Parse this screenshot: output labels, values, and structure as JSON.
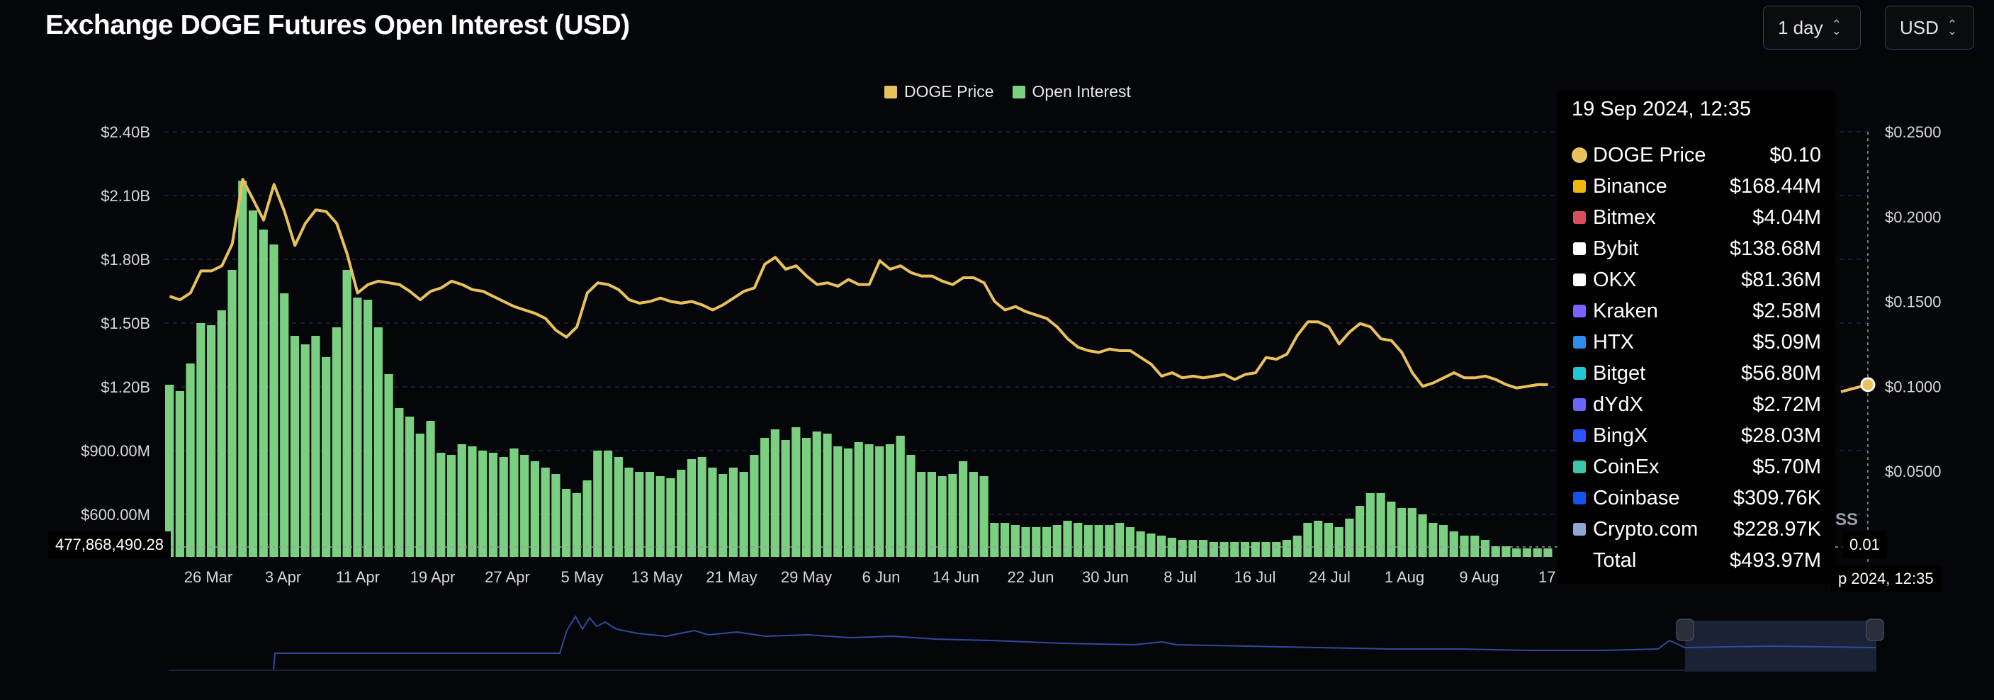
{
  "title": "Exchange DOGE Futures Open Interest (USD)",
  "controls": {
    "interval": "1 day",
    "currency": "USD"
  },
  "colors": {
    "price": "#e8c15a",
    "open_interest": "#7ad080",
    "background": "#05060a",
    "navigator_line": "#2e4a9c"
  },
  "chart_data": {
    "type": "bar",
    "legend": [
      "DOGE Price",
      "Open Interest"
    ],
    "legend_position": "top-center",
    "x_tick_labels": [
      "26 Mar",
      "3 Apr",
      "11 Apr",
      "19 Apr",
      "27 Apr",
      "5 May",
      "13 May",
      "21 May",
      "29 May",
      "6 Jun",
      "14 Jun",
      "22 Jun",
      "30 Jun",
      "8 Jul",
      "16 Jul",
      "24 Jul",
      "1 Aug",
      "9 Aug",
      "17 A"
    ],
    "y_left": {
      "ticks": [
        "$2.40B",
        "$2.10B",
        "$1.80B",
        "$1.50B",
        "$1.20B",
        "$900.00M",
        "$600.00M"
      ],
      "range": [
        400000000,
        2400000000
      ]
    },
    "y_right": {
      "ticks": [
        "$0.2500",
        "$0.2000",
        "$0.1500",
        "$0.1000",
        "$0.0500"
      ],
      "range": [
        -0.0005,
        0.25
      ]
    },
    "grid": true,
    "start_date": "2024-03-22",
    "series": [
      {
        "name": "Open Interest",
        "type": "bar",
        "axis": "left",
        "values": [
          1210,
          1180,
          1310,
          1500,
          1490,
          1560,
          1750,
          2170,
          2030,
          1940,
          1870,
          1640,
          1440,
          1400,
          1440,
          1340,
          1480,
          1750,
          1620,
          1610,
          1480,
          1260,
          1100,
          1060,
          980,
          1040,
          890,
          880,
          930,
          920,
          900,
          890,
          870,
          910,
          880,
          850,
          820,
          790,
          720,
          700,
          760,
          900,
          900,
          870,
          820,
          800,
          800,
          780,
          770,
          810,
          860,
          870,
          820,
          790,
          820,
          800,
          880,
          960,
          1000,
          950,
          1010,
          960,
          990,
          980,
          920,
          910,
          940,
          930,
          920,
          930,
          970,
          880,
          800,
          800,
          780,
          790,
          850,
          800,
          780,
          560,
          560,
          550,
          540,
          540,
          540,
          550,
          570,
          560,
          550,
          550,
          550,
          560,
          540,
          520,
          510,
          500,
          490,
          480,
          480,
          480,
          470,
          470,
          470,
          470,
          470,
          470,
          470,
          480,
          500,
          560,
          570,
          560,
          540,
          580,
          640,
          700,
          700,
          660,
          630,
          630,
          600,
          560,
          550,
          520,
          500,
          500,
          480,
          450,
          450,
          440,
          440,
          440,
          440
        ]
      },
      {
        "name": "DOGE Price",
        "type": "line",
        "axis": "right",
        "values": [
          0.153,
          0.151,
          0.155,
          0.168,
          0.168,
          0.171,
          0.184,
          0.222,
          0.21,
          0.198,
          0.219,
          0.203,
          0.183,
          0.196,
          0.204,
          0.203,
          0.196,
          0.178,
          0.155,
          0.16,
          0.162,
          0.161,
          0.16,
          0.156,
          0.151,
          0.156,
          0.158,
          0.162,
          0.16,
          0.157,
          0.156,
          0.153,
          0.15,
          0.147,
          0.145,
          0.143,
          0.14,
          0.133,
          0.129,
          0.135,
          0.155,
          0.161,
          0.16,
          0.157,
          0.151,
          0.149,
          0.15,
          0.152,
          0.15,
          0.149,
          0.15,
          0.148,
          0.145,
          0.148,
          0.152,
          0.156,
          0.158,
          0.172,
          0.176,
          0.169,
          0.171,
          0.165,
          0.16,
          0.161,
          0.159,
          0.163,
          0.16,
          0.16,
          0.174,
          0.169,
          0.171,
          0.167,
          0.165,
          0.165,
          0.162,
          0.16,
          0.164,
          0.164,
          0.161,
          0.15,
          0.145,
          0.147,
          0.144,
          0.142,
          0.14,
          0.135,
          0.128,
          0.123,
          0.121,
          0.12,
          0.122,
          0.121,
          0.121,
          0.117,
          0.113,
          0.106,
          0.108,
          0.105,
          0.106,
          0.105,
          0.106,
          0.107,
          0.104,
          0.107,
          0.108,
          0.117,
          0.116,
          0.119,
          0.13,
          0.138,
          0.138,
          0.135,
          0.125,
          0.132,
          0.137,
          0.135,
          0.128,
          0.127,
          0.12,
          0.108,
          0.1,
          0.102,
          0.105,
          0.108,
          0.105,
          0.105,
          0.106,
          0.104,
          0.101,
          0.099,
          0.1,
          0.101,
          0.101
        ]
      }
    ],
    "hover_value_label": "477,868,490.28",
    "cursor_value_label": "0.01",
    "cursor_date_label": "p 2024, 12:35",
    "partial_label": "SS"
  },
  "tooltip": {
    "date": "19 Sep 2024, 12:35",
    "rows": [
      {
        "name": "DOGE Price",
        "value": "$0.10",
        "icon": "doge-price-dot",
        "color": "#e8c15a"
      },
      {
        "name": "Binance",
        "value": "$168.44M",
        "icon": "binance-icon",
        "color": "#f0b90b"
      },
      {
        "name": "Bitmex",
        "value": "$4.04M",
        "icon": "bitmex-icon",
        "color": "#d94e5b"
      },
      {
        "name": "Bybit",
        "value": "$138.68M",
        "icon": "bybit-icon",
        "color": "#ffffff"
      },
      {
        "name": "OKX",
        "value": "$81.36M",
        "icon": "okx-icon",
        "color": "#ffffff"
      },
      {
        "name": "Kraken",
        "value": "$2.58M",
        "icon": "kraken-icon",
        "color": "#7b61ff"
      },
      {
        "name": "HTX",
        "value": "$5.09M",
        "icon": "htx-icon",
        "color": "#2d8cf0"
      },
      {
        "name": "Bitget",
        "value": "$56.80M",
        "icon": "bitget-icon",
        "color": "#1fc7d4"
      },
      {
        "name": "dYdX",
        "value": "$2.72M",
        "icon": "dydx-icon",
        "color": "#6966ff"
      },
      {
        "name": "BingX",
        "value": "$28.03M",
        "icon": "bingx-icon",
        "color": "#2a54ff"
      },
      {
        "name": "CoinEx",
        "value": "$5.70M",
        "icon": "coinex-icon",
        "color": "#3cc6a8"
      },
      {
        "name": "Coinbase",
        "value": "$309.76K",
        "icon": "coinbase-icon",
        "color": "#1652f0"
      },
      {
        "name": "Crypto.com",
        "value": "$228.97K",
        "icon": "cryptocom-icon",
        "color": "#8fa6d6"
      },
      {
        "name": "Total",
        "value": "$493.97M",
        "icon": "",
        "color": ""
      }
    ]
  }
}
